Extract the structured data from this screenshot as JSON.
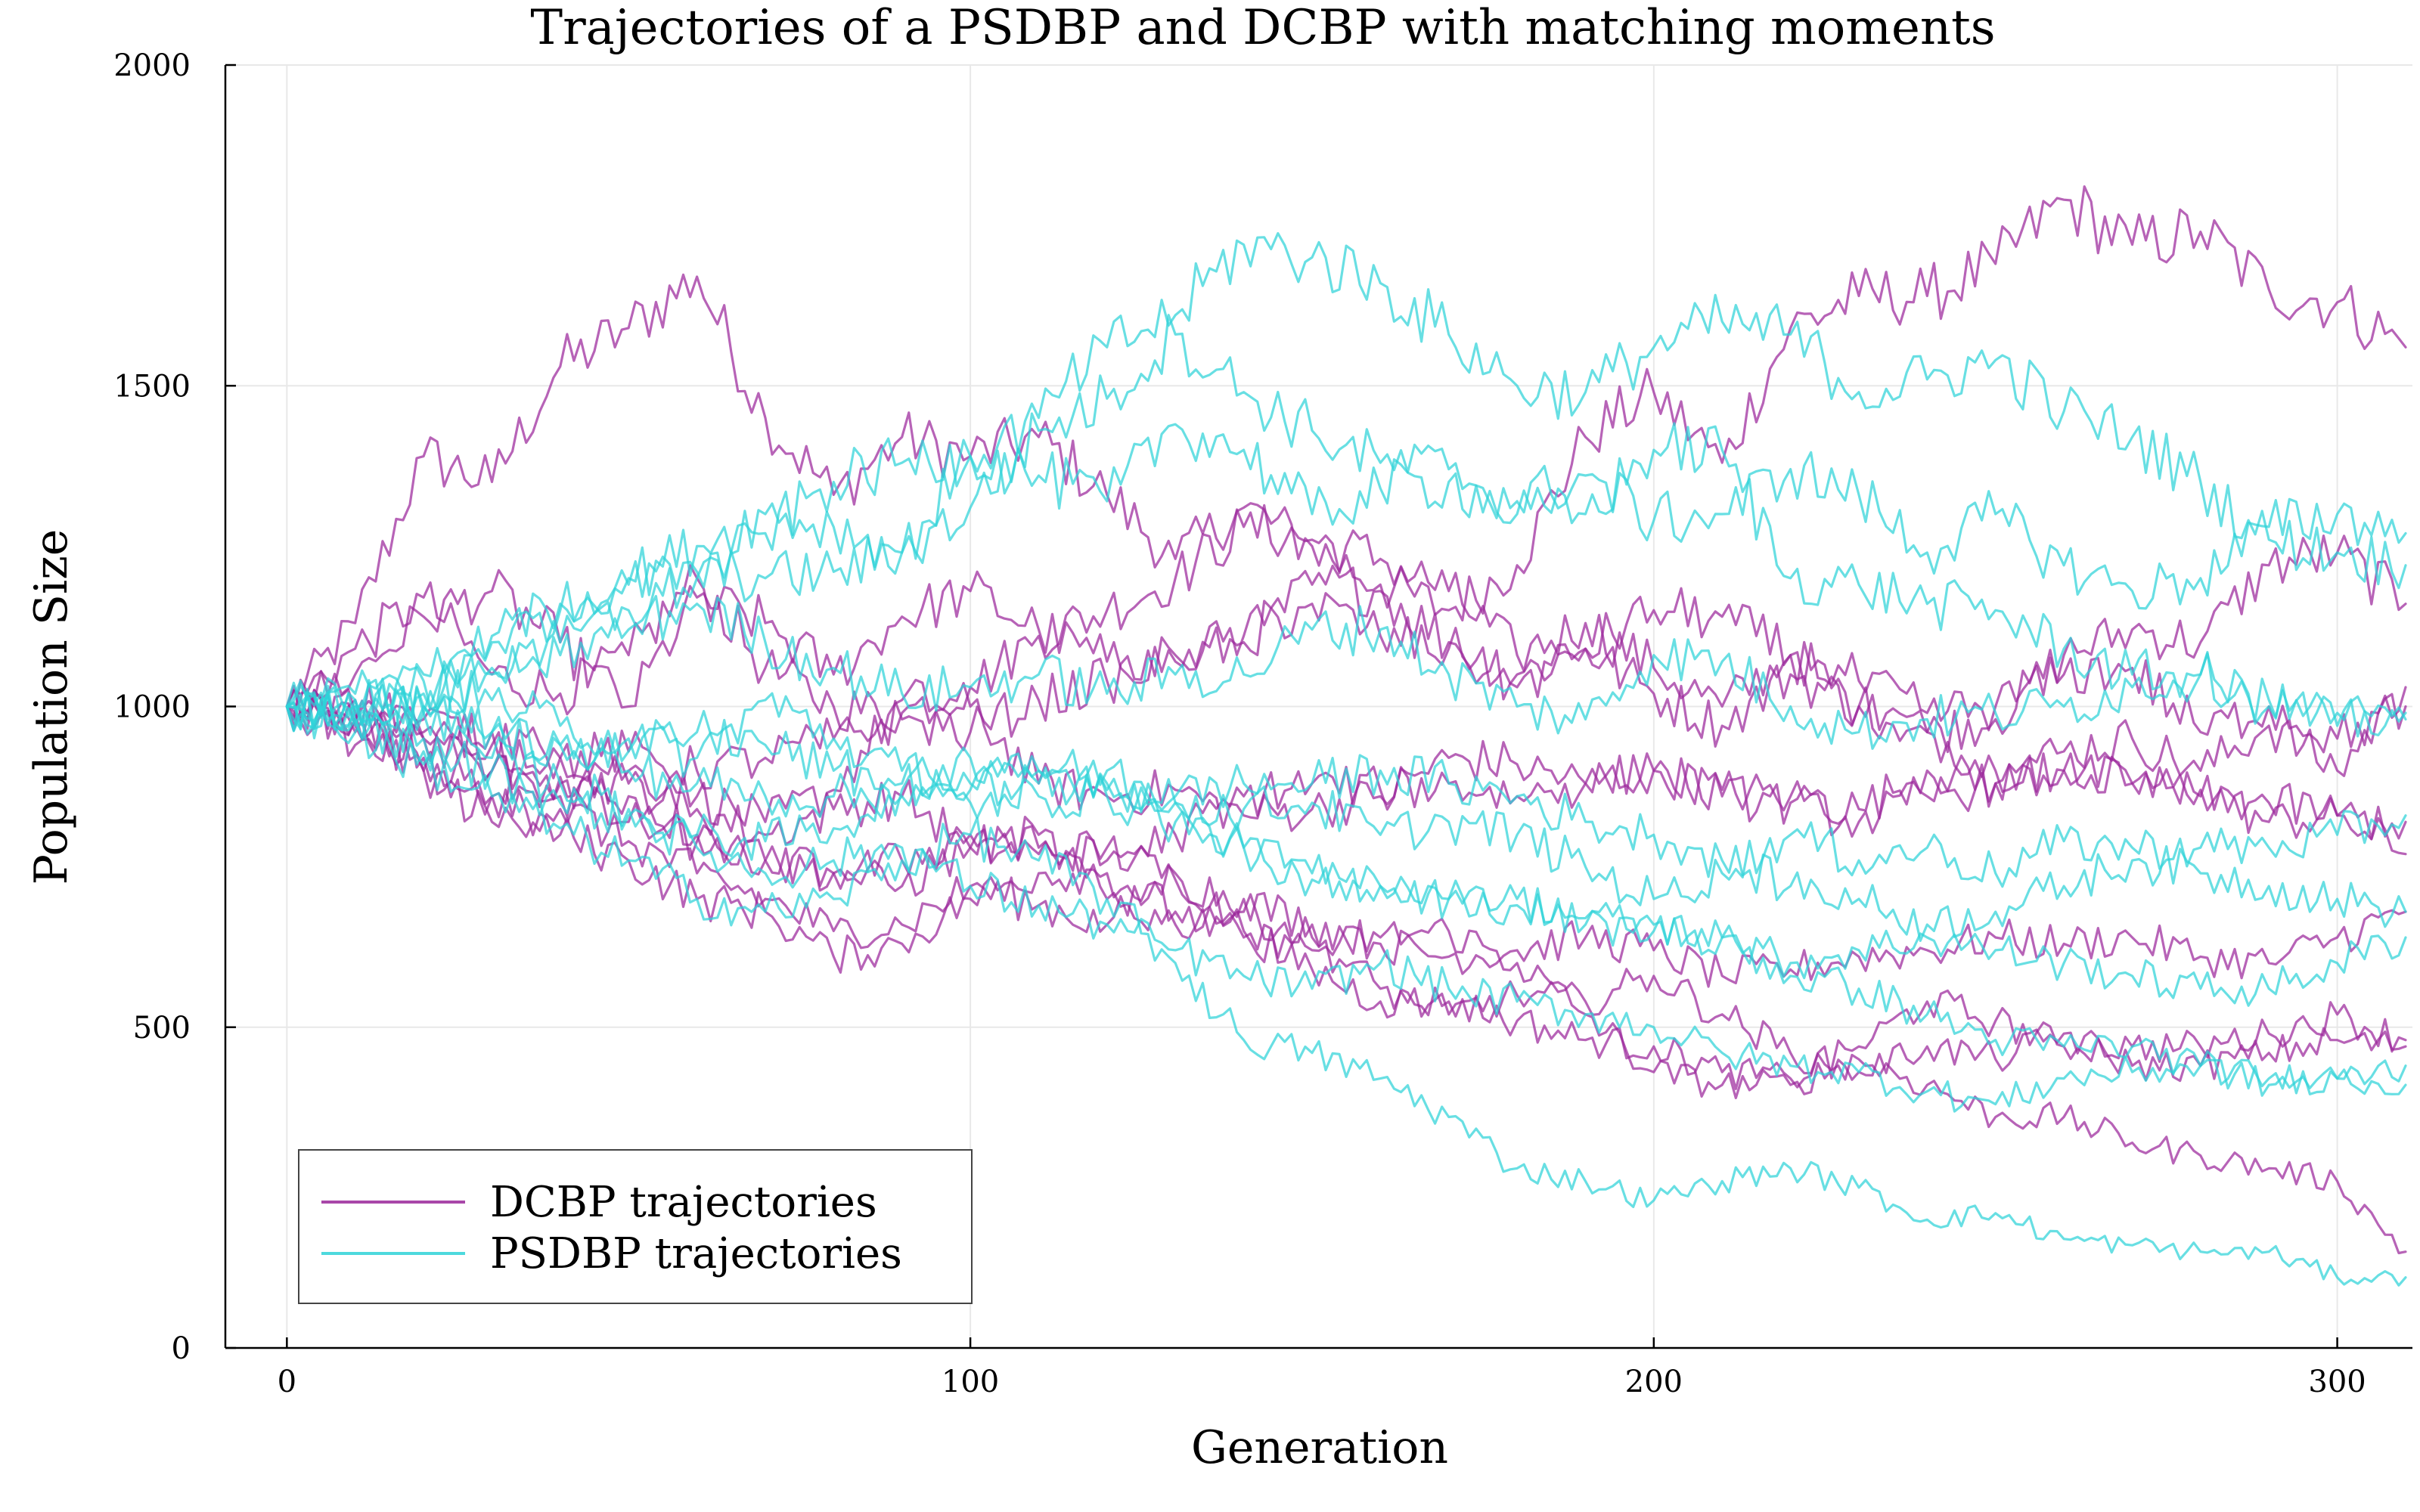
{
  "chart_data": {
    "type": "line",
    "title": "Trajectories of a PSDBP and DCBP with matching moments",
    "xlabel": "Generation",
    "ylabel": "Population Size",
    "xlim": [
      -9,
      311
    ],
    "ylim": [
      0,
      2000
    ],
    "x_ticks": [
      0,
      100,
      200,
      300
    ],
    "y_ticks": [
      0,
      500,
      1000,
      1500,
      2000
    ],
    "grid": true,
    "legend_position": "bottom-left",
    "x_step": 10,
    "groups": [
      {
        "name": "DCBP trajectories",
        "color": "#9b279b",
        "trajectories": [
          [
            1000,
            1130,
            1390,
            1350,
            1530,
            1590,
            1670,
            1450,
            1330,
            1420,
            1390,
            1420,
            1330,
            1230,
            1310,
            1250,
            1190,
            1150,
            1220,
            1420,
            1490,
            1380,
            1590,
            1640,
            1640,
            1690,
            1790,
            1720,
            1740,
            1650,
            1630,
            1560
          ],
          [
            1000,
            1090,
            1170,
            1050,
            1020,
            1080,
            1200,
            1060,
            1000,
            990,
            1030,
            1110,
            1150,
            1200,
            1280,
            1260,
            1230,
            1180,
            1080,
            1130,
            1060,
            1000,
            1080,
            1000,
            960,
            980,
            1080,
            1120,
            1100,
            1220,
            1240,
            1160
          ],
          [
            1000,
            1050,
            1140,
            1180,
            1100,
            1000,
            1170,
            1130,
            1050,
            1140,
            1180,
            1120,
            1070,
            1070,
            1100,
            1190,
            1180,
            1100,
            1050,
            1090,
            1020,
            970,
            1050,
            1000,
            960,
            900,
            930,
            950,
            900,
            970,
            900,
            1030
          ],
          [
            1000,
            980,
            950,
            960,
            920,
            900,
            860,
            820,
            870,
            1010,
            1000,
            880,
            860,
            870,
            830,
            840,
            860,
            920,
            910,
            880,
            900,
            870,
            860,
            840,
            900,
            880,
            900,
            880,
            870,
            820,
            830,
            770
          ],
          [
            1000,
            970,
            920,
            860,
            890,
            880,
            840,
            800,
            840,
            860,
            780,
            770,
            780,
            730,
            700,
            660,
            630,
            610,
            620,
            640,
            620,
            580,
            590,
            610,
            620,
            640,
            630,
            640,
            610,
            600,
            640,
            680
          ],
          [
            1000,
            960,
            900,
            820,
            840,
            790,
            740,
            700,
            650,
            660,
            720,
            690,
            660,
            740,
            650,
            590,
            540,
            540,
            510,
            480,
            470,
            430,
            420,
            470,
            540,
            510,
            470,
            470,
            470,
            490,
            520,
            480
          ],
          [
            1000,
            940,
            900,
            860,
            800,
            760,
            700,
            680,
            610,
            630,
            700,
            740,
            740,
            680,
            640,
            620,
            640,
            650,
            600,
            520,
            430,
            410,
            410,
            450,
            410,
            360,
            360,
            320,
            300,
            280,
            260,
            150
          ],
          [
            1000,
            990,
            960,
            900,
            880,
            860,
            800,
            760,
            740,
            720,
            780,
            800,
            700,
            660,
            680,
            640,
            560,
            520,
            550,
            540,
            580,
            520,
            460,
            430,
            470,
            450,
            490,
            440,
            440,
            460,
            480,
            470
          ],
          [
            1000,
            1010,
            980,
            940,
            920,
            930,
            900,
            920,
            950,
            980,
            960,
            1010,
            1040,
            1080,
            1110,
            1160,
            1110,
            1090,
            1030,
            1090,
            1150,
            1140,
            1080,
            1040,
            990,
            1000,
            1050,
            1060,
            960,
            1000,
            950,
            1000
          ],
          [
            1000,
            980,
            950,
            900,
            860,
            820,
            790,
            760,
            740,
            760,
            800,
            780,
            760,
            800,
            860,
            880,
            870,
            880,
            860,
            880,
            900,
            860,
            850,
            820,
            860,
            880,
            900,
            880,
            860,
            850,
            830,
            820
          ]
        ]
      },
      {
        "name": "PSDBP trajectories",
        "color": "#2ed3d8",
        "trajectories": [
          [
            1000,
            1020,
            1050,
            1100,
            1150,
            1200,
            1250,
            1300,
            1280,
            1240,
            1390,
            1450,
            1560,
            1610,
            1720,
            1700,
            1660,
            1580,
            1500,
            1490,
            1560,
            1600,
            1580,
            1490,
            1510,
            1540,
            1460,
            1420,
            1350,
            1260,
            1240,
            1220
          ],
          [
            1000,
            990,
            1000,
            1110,
            1160,
            1190,
            1210,
            1200,
            1210,
            1240,
            1310,
            1430,
            1480,
            1580,
            1490,
            1430,
            1380,
            1370,
            1320,
            1360,
            1290,
            1300,
            1370,
            1330,
            1240,
            1300,
            1220,
            1180,
            1200,
            1280,
            1300,
            1270
          ],
          [
            1000,
            1000,
            1020,
            1060,
            1100,
            1150,
            1200,
            1270,
            1350,
            1380,
            1390,
            1360,
            1320,
            1440,
            1400,
            1300,
            1340,
            1350,
            1300,
            1300,
            1400,
            1400,
            1200,
            1190,
            1160,
            1150,
            1090,
            1050,
            1050,
            1000,
            990,
            980
          ],
          [
            1000,
            1010,
            990,
            1050,
            1080,
            1120,
            1160,
            1100,
            1060,
            1020,
            1030,
            1050,
            1020,
            1050,
            1050,
            1120,
            1120,
            1050,
            1000,
            980,
            1080,
            1070,
            1000,
            960,
            980,
            990,
            1000,
            1030,
            1050,
            1010,
            970,
            990
          ],
          [
            1000,
            1000,
            1040,
            1010,
            970,
            950,
            920,
            1010,
            950,
            900,
            880,
            900,
            880,
            850,
            840,
            850,
            800,
            820,
            800,
            750,
            700,
            740,
            800,
            760,
            780,
            740,
            790,
            780,
            780,
            780,
            800,
            830
          ],
          [
            1000,
            970,
            930,
            900,
            850,
            830,
            800,
            790,
            810,
            870,
            920,
            900,
            900,
            850,
            780,
            730,
            720,
            700,
            690,
            660,
            650,
            640,
            600,
            620,
            640,
            620,
            600,
            580,
            560,
            560,
            600,
            640
          ],
          [
            1000,
            960,
            910,
            860,
            810,
            760,
            700,
            680,
            700,
            760,
            800,
            760,
            700,
            600,
            480,
            460,
            420,
            360,
            280,
            260,
            230,
            260,
            280,
            250,
            200,
            210,
            170,
            160,
            150,
            150,
            110,
            110
          ],
          [
            1000,
            980,
            950,
            920,
            880,
            840,
            780,
            740,
            760,
            780,
            720,
            690,
            660,
            620,
            580,
            560,
            600,
            560,
            540,
            520,
            500,
            460,
            440,
            430,
            400,
            380,
            420,
            430,
            440,
            410,
            420,
            440
          ],
          [
            1000,
            1010,
            990,
            960,
            940,
            900,
            880,
            860,
            860,
            860,
            850,
            860,
            860,
            820,
            780,
            740,
            720,
            700,
            700,
            670,
            660,
            640,
            580,
            560,
            520,
            480,
            470,
            470,
            440,
            420,
            420,
            410
          ],
          [
            1000,
            980,
            1000,
            960,
            940,
            930,
            960,
            940,
            900,
            880,
            870,
            880,
            870,
            860,
            880,
            880,
            900,
            880,
            860,
            820,
            800,
            760,
            720,
            700,
            660,
            680,
            720,
            760,
            740,
            720,
            700,
            680
          ]
        ]
      }
    ]
  }
}
